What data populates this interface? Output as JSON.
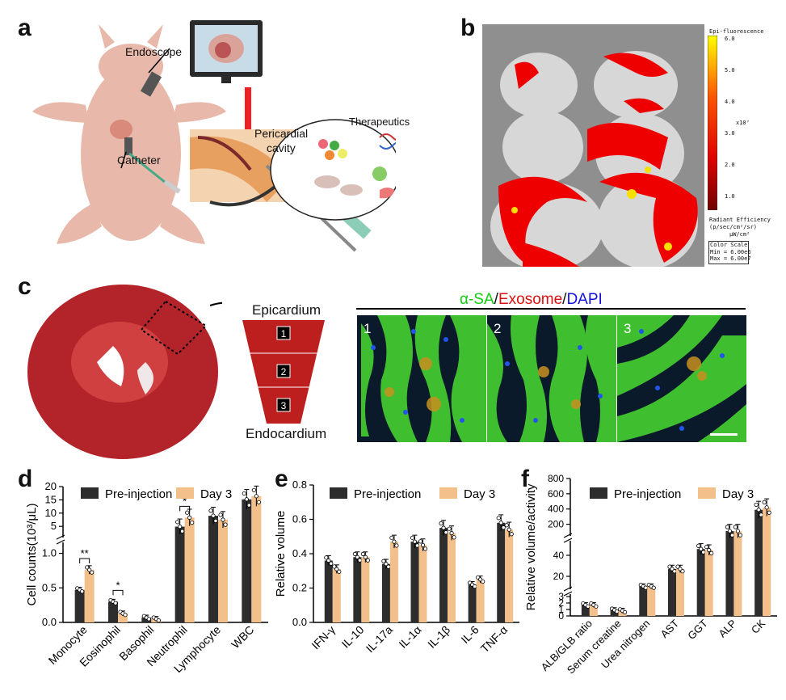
{
  "panels": {
    "a": {
      "letter": "a",
      "labels": {
        "endoscope": "Endoscope",
        "catheter": "Catheter",
        "pericardial": "Pericardial",
        "cavity": "cavity",
        "therapeutics": "Therapeutics"
      }
    },
    "b": {
      "letter": "b",
      "colorbar": {
        "title": "Epi-fluorescence",
        "ticks": [
          "6.0",
          "5.0",
          "4.0",
          "3.0",
          "2.0",
          "1.0"
        ],
        "exponent": "x10⁷",
        "unit_line1": "Radiant Efficiency",
        "unit_line2": "(p/sec/cm²/sr)",
        "unit_line3": "μW/cm²",
        "scale_title": "Color Scale",
        "scale_min": "Min = 6.00e6",
        "scale_max": "Max = 6.00e7"
      }
    },
    "c": {
      "letter": "c",
      "epicardium": "Epicardium",
      "endocardium": "Endocardium",
      "layers": [
        "1",
        "2",
        "3"
      ],
      "stain_sa": "α-SA",
      "stain_exo": "Exosome",
      "stain_dapi": "DAPI",
      "sep": "/",
      "tiles": [
        "1",
        "2",
        "3"
      ]
    }
  },
  "colors": {
    "bar_pre": "#2d2d2d",
    "bar_day3": "#f3c08c",
    "sa": "#11cc11",
    "exo": "#dd1111",
    "dapi": "#1111dd"
  },
  "chart_data": [
    {
      "panel": "d",
      "type": "bar",
      "ylabel": "Cell counts(10³/μL)",
      "categories": [
        "Monocyte",
        "Eosinophil",
        "Basophil",
        "Neutrophil",
        "Lymphocyte",
        "WBC"
      ],
      "series": [
        {
          "name": "Pre-injection",
          "values": [
            0.47,
            0.3,
            0.07,
            4.9,
            9.0,
            15.2
          ]
        },
        {
          "name": "Day 3",
          "values": [
            0.76,
            0.13,
            0.05,
            8.3,
            7.5,
            16.4
          ]
        }
      ],
      "y_axis": {
        "broken": true,
        "lower_ticks": [
          "0.0",
          "0.5",
          "1.0"
        ],
        "upper_ticks": [
          "5",
          "10",
          "15",
          "20"
        ]
      },
      "significance": [
        {
          "category": "Monocyte",
          "mark": "**"
        },
        {
          "category": "Eosinophil",
          "mark": "*"
        },
        {
          "category": "Neutrophil",
          "mark": "*"
        }
      ]
    },
    {
      "panel": "e",
      "type": "bar",
      "ylabel": "Relative volume",
      "categories": [
        "IFN-γ",
        "IL-10",
        "IL-17a",
        "IL-1α",
        "IL-1β",
        "IL-6",
        "TNF-α"
      ],
      "series": [
        {
          "name": "Pre-injection",
          "values": [
            0.36,
            0.38,
            0.34,
            0.47,
            0.55,
            0.22,
            0.58
          ]
        },
        {
          "name": "Day 3",
          "values": [
            0.31,
            0.38,
            0.47,
            0.45,
            0.52,
            0.25,
            0.54
          ]
        }
      ],
      "ylim": [
        0,
        0.8
      ],
      "y_ticks": [
        "0.0",
        "0.2",
        "0.4",
        "0.6",
        "0.8"
      ]
    },
    {
      "panel": "f",
      "type": "bar",
      "ylabel": "Relative volume/activity",
      "categories": [
        "ALB/GLB ratio",
        "Serum creatine",
        "Urea nitrogen",
        "AST",
        "GGT",
        "ALP",
        "CK"
      ],
      "series": [
        {
          "name": "Pre-injection",
          "values": [
            1.7,
            0.9,
            10.5,
            27,
            46,
            110,
            390
          ]
        },
        {
          "name": "Day 3",
          "values": [
            1.7,
            0.8,
            10.5,
            27,
            45,
            110,
            420
          ]
        }
      ],
      "y_axis": {
        "broken": true,
        "lower_ticks": [
          "0",
          "1",
          "2",
          "3"
        ],
        "middle_ticks": [
          "20",
          "40"
        ],
        "upper_ticks": [
          "200",
          "400",
          "600",
          "800"
        ]
      }
    }
  ]
}
